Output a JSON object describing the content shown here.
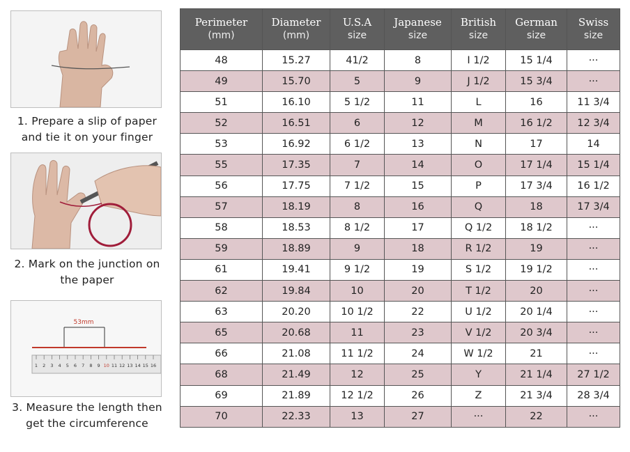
{
  "steps": {
    "step1": {
      "line1": "1. Prepare a slip of paper",
      "line2": "and tie it on your finger"
    },
    "step2": {
      "line1": "2. Mark on the junction on",
      "line2": "the paper"
    },
    "step3": {
      "line1": "3. Measure the length then",
      "line2": "get the circumference"
    }
  },
  "ruler": {
    "measure_label": "53mm",
    "ticks": [
      "1",
      "2",
      "3",
      "4",
      "5",
      "6",
      "7",
      "8",
      "9",
      "10",
      "11",
      "12",
      "13",
      "14",
      "15",
      "16"
    ]
  },
  "table": {
    "headers": [
      {
        "title": "Perimeter",
        "unit": "(mm)"
      },
      {
        "title": "Diameter",
        "unit": "(mm)"
      },
      {
        "title": "U.S.A",
        "unit": "size"
      },
      {
        "title": "Japanese",
        "unit": "size"
      },
      {
        "title": "British",
        "unit": "size"
      },
      {
        "title": "German",
        "unit": "size"
      },
      {
        "title": "Swiss",
        "unit": "size"
      }
    ],
    "rows": [
      [
        "48",
        "15.27",
        "41/2",
        "8",
        "I 1/2",
        "15 1/4",
        "···"
      ],
      [
        "49",
        "15.70",
        "5",
        "9",
        "J 1/2",
        "15 3/4",
        "···"
      ],
      [
        "51",
        "16.10",
        "5 1/2",
        "11",
        "L",
        "16",
        "11 3/4"
      ],
      [
        "52",
        "16.51",
        "6",
        "12",
        "M",
        "16 1/2",
        "12 3/4"
      ],
      [
        "53",
        "16.92",
        "6 1/2",
        "13",
        "N",
        "17",
        "14"
      ],
      [
        "55",
        "17.35",
        "7",
        "14",
        "O",
        "17 1/4",
        "15 1/4"
      ],
      [
        "56",
        "17.75",
        "7 1/2",
        "15",
        "P",
        "17 3/4",
        "16 1/2"
      ],
      [
        "57",
        "18.19",
        "8",
        "16",
        "Q",
        "18",
        "17 3/4"
      ],
      [
        "58",
        "18.53",
        "8 1/2",
        "17",
        "Q  1/2",
        "18 1/2",
        "···"
      ],
      [
        "59",
        "18.89",
        "9",
        "18",
        "R 1/2",
        "19",
        "···"
      ],
      [
        "61",
        "19.41",
        "9 1/2",
        "19",
        "S 1/2",
        "19 1/2",
        "···"
      ],
      [
        "62",
        "19.84",
        "10",
        "20",
        "T 1/2",
        "20",
        "···"
      ],
      [
        "63",
        "20.20",
        "10 1/2",
        "22",
        "U 1/2",
        "20 1/4",
        "···"
      ],
      [
        "65",
        "20.68",
        "11",
        "23",
        "V 1/2",
        "20 3/4",
        "···"
      ],
      [
        "66",
        "21.08",
        "11 1/2",
        "24",
        "W 1/2",
        "21",
        "···"
      ],
      [
        "68",
        "21.49",
        "12",
        "25",
        "Y",
        "21 1/4",
        "27 1/2"
      ],
      [
        "69",
        "21.89",
        "12 1/2",
        "26",
        "Z",
        "21 3/4",
        "28 3/4"
      ],
      [
        "70",
        "22.33",
        "13",
        "27",
        "···",
        "22",
        "···"
      ]
    ]
  }
}
